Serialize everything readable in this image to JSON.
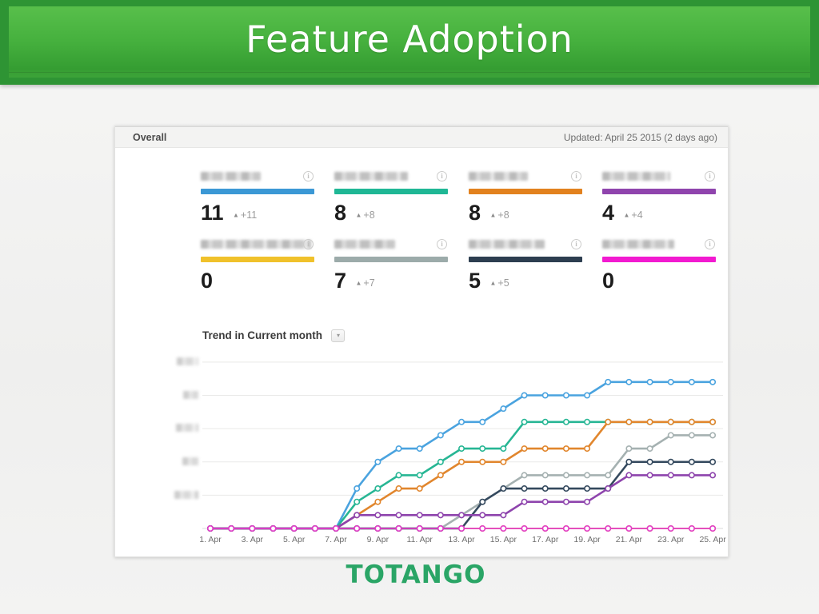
{
  "slide": {
    "title": "Feature Adoption"
  },
  "footer": {
    "logo": "TOTANGO"
  },
  "icons": {
    "info": "i",
    "dropdown_caret": "▾",
    "delta_up": "▲"
  },
  "dashboard": {
    "header": {
      "left": "Overall",
      "right": "Updated: April 25 2015 (2 days ago)"
    },
    "cards": [
      {
        "label_redacted": true,
        "value": "11",
        "delta": "+11",
        "color": "#3b98d5"
      },
      {
        "label_redacted": true,
        "value": "8",
        "delta": "+8",
        "color": "#1fb795"
      },
      {
        "label_redacted": true,
        "value": "8",
        "delta": "+8",
        "color": "#e2811e"
      },
      {
        "label_redacted": true,
        "value": "4",
        "delta": "+4",
        "color": "#8f44ad"
      },
      {
        "label_redacted": true,
        "value": "0",
        "delta": null,
        "color": "#f0c12b"
      },
      {
        "label_redacted": true,
        "value": "7",
        "delta": "+7",
        "color": "#9cabaa"
      },
      {
        "label_redacted": true,
        "value": "5",
        "delta": "+5",
        "color": "#2d3e50"
      },
      {
        "label_redacted": true,
        "value": "0",
        "delta": null,
        "color": "#f21ad0"
      }
    ],
    "trend": {
      "label": "Trend in Current month"
    }
  },
  "chart_data": {
    "type": "line",
    "title": "Trend in Current month",
    "x": [
      1,
      2,
      3,
      4,
      5,
      6,
      7,
      8,
      9,
      10,
      11,
      12,
      13,
      14,
      15,
      16,
      17,
      18,
      19,
      20,
      21,
      22,
      23,
      24,
      25
    ],
    "x_tick_labels": [
      "1. Apr",
      "3. Apr",
      "5. Apr",
      "7. Apr",
      "9. Apr",
      "11. Apr",
      "13. Apr",
      "15. Apr",
      "17. Apr",
      "19. Apr",
      "21. Apr",
      "23. Apr",
      "25. Apr"
    ],
    "ylim": [
      0,
      13.5
    ],
    "gridlines": [
      2.5,
      5,
      7.5,
      10,
      12.5
    ],
    "y_tick_labels_redacted": true,
    "grid": true,
    "legend": "none",
    "marker": "open-circle",
    "series": [
      {
        "name": "yellow-feature",
        "color": "#f0c12b",
        "stroke_width": 1.8,
        "values": [
          0,
          0,
          0,
          0,
          0,
          0,
          0,
          0,
          0,
          0,
          0,
          0,
          0,
          0,
          0,
          0,
          0,
          0,
          0,
          0,
          0,
          0,
          0,
          0,
          0
        ]
      },
      {
        "name": "blue-feature",
        "color": "#4aa3df",
        "stroke_width": 2.6,
        "values": [
          0,
          0,
          0,
          0,
          0,
          0,
          0,
          3,
          5,
          6,
          6,
          7,
          8,
          8,
          9,
          10,
          10,
          10,
          10,
          11,
          11,
          11,
          11,
          11,
          11
        ]
      },
      {
        "name": "teal-feature",
        "color": "#27b694",
        "stroke_width": 2.6,
        "values": [
          0,
          0,
          0,
          0,
          0,
          0,
          0,
          2,
          3,
          4,
          4,
          5,
          6,
          6,
          6,
          8,
          8,
          8,
          8,
          8,
          8,
          8,
          8,
          8,
          8
        ]
      },
      {
        "name": "orange-feature",
        "color": "#e1862d",
        "stroke_width": 2.6,
        "values": [
          0,
          0,
          0,
          0,
          0,
          0,
          0,
          1,
          2,
          3,
          3,
          4,
          5,
          5,
          5,
          6,
          6,
          6,
          6,
          8,
          8,
          8,
          8,
          8,
          8
        ]
      },
      {
        "name": "gray-feature",
        "color": "#a5b1b1",
        "stroke_width": 2.6,
        "values": [
          0,
          0,
          0,
          0,
          0,
          0,
          0,
          0,
          0,
          0,
          0,
          0,
          1,
          2,
          3,
          4,
          4,
          4,
          4,
          4,
          6,
          6,
          7,
          7,
          7
        ]
      },
      {
        "name": "navy-feature",
        "color": "#34495e",
        "stroke_width": 2.6,
        "values": [
          0,
          0,
          0,
          0,
          0,
          0,
          0,
          0,
          0,
          0,
          0,
          0,
          0,
          2,
          3,
          3,
          3,
          3,
          3,
          3,
          5,
          5,
          5,
          5,
          5
        ]
      },
      {
        "name": "purple-feature",
        "color": "#8e44ad",
        "stroke_width": 2.6,
        "values": [
          0,
          0,
          0,
          0,
          0,
          0,
          0,
          1,
          1,
          1,
          1,
          1,
          1,
          1,
          1,
          2,
          2,
          2,
          2,
          3,
          4,
          4,
          4,
          4,
          4
        ]
      },
      {
        "name": "magenta-feature",
        "color": "#e23ec9",
        "stroke_width": 1.8,
        "values": [
          0,
          0,
          0,
          0,
          0,
          0,
          0,
          0,
          0,
          0,
          0,
          0,
          0,
          0,
          0,
          0,
          0,
          0,
          0,
          0,
          0,
          0,
          0,
          0,
          0
        ]
      }
    ]
  }
}
